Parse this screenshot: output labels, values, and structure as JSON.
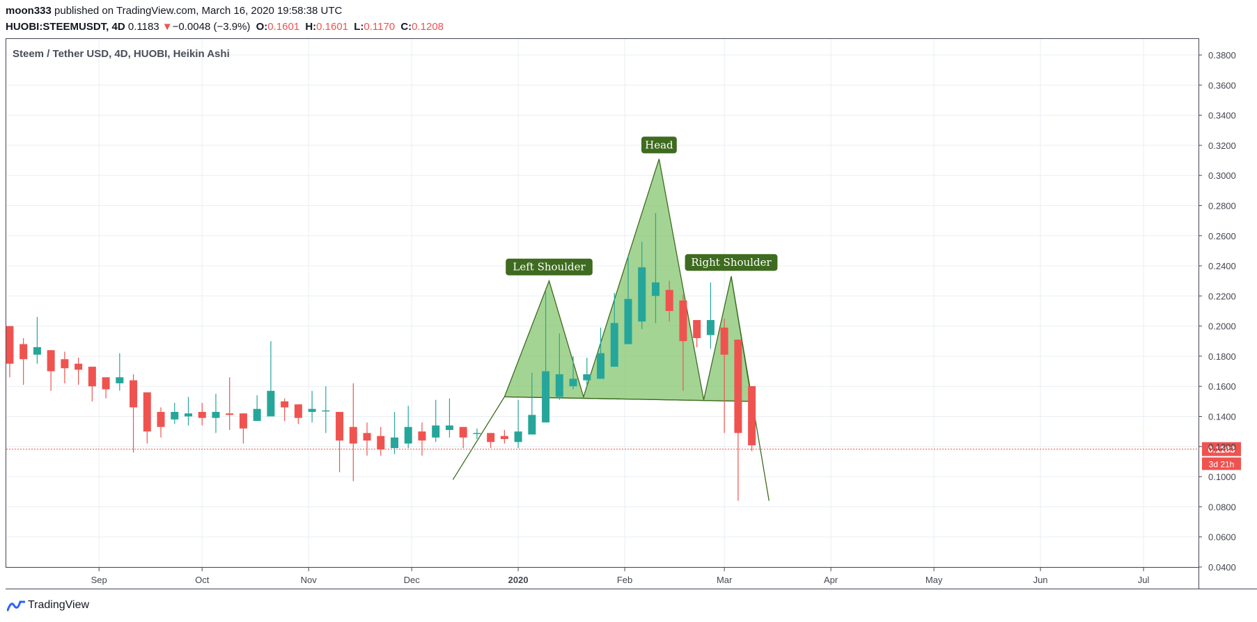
{
  "header": {
    "author": "moon333",
    "published_text": "published on TradingView.com, March 16, 2020 19:58:38 UTC",
    "symbol": "HUOBI:STEEMUSDT, 4D",
    "last_price": "0.1183",
    "change_arrow": "▼",
    "change": "−0.0048 (−3.9%)",
    "o_label": "O:",
    "o_value": "0.1601",
    "h_label": "H:",
    "h_value": "0.1601",
    "l_label": "L:",
    "l_value": "0.1170",
    "c_label": "C:",
    "c_value": "0.1208"
  },
  "footer": {
    "brand": "TradingView"
  },
  "chart_data": {
    "type": "candlestick",
    "title": "Steem / Tether USD, 4D, HUOBI, Heikin Ashi",
    "ylim": [
      0.04,
      0.39
    ],
    "y_ticks": [
      "0.3800",
      "0.3600",
      "0.3400",
      "0.3200",
      "0.3000",
      "0.2800",
      "0.2600",
      "0.2400",
      "0.2200",
      "0.2000",
      "0.1800",
      "0.1600",
      "0.1400",
      "0.1200",
      "0.1000",
      "0.0800",
      "0.0600",
      "0.0400"
    ],
    "x_start": "2019-08-05",
    "x_end": "2020-07-17",
    "x_ticks": [
      {
        "label": "Sep",
        "date": "2019-09-01",
        "bold": false
      },
      {
        "label": "Oct",
        "date": "2019-10-01",
        "bold": false
      },
      {
        "label": "Nov",
        "date": "2019-11-01",
        "bold": false
      },
      {
        "label": "Dec",
        "date": "2019-12-01",
        "bold": false
      },
      {
        "label": "2020",
        "date": "2020-01-01",
        "bold": true
      },
      {
        "label": "Feb",
        "date": "2020-02-01",
        "bold": false
      },
      {
        "label": "Mar",
        "date": "2020-03-01",
        "bold": false
      },
      {
        "label": "Apr",
        "date": "2020-04-01",
        "bold": false
      },
      {
        "label": "May",
        "date": "2020-05-01",
        "bold": false
      },
      {
        "label": "Jun",
        "date": "2020-06-01",
        "bold": false
      },
      {
        "label": "Jul",
        "date": "2020-07-01",
        "bold": false
      }
    ],
    "candles": [
      {
        "d": "2019-08-06",
        "o": 0.2,
        "h": 0.2,
        "l": 0.166,
        "c": 0.175
      },
      {
        "d": "2019-08-10",
        "o": 0.188,
        "h": 0.192,
        "l": 0.161,
        "c": 0.178
      },
      {
        "d": "2019-08-14",
        "o": 0.181,
        "h": 0.206,
        "l": 0.175,
        "c": 0.186
      },
      {
        "d": "2019-08-18",
        "o": 0.184,
        "h": 0.184,
        "l": 0.157,
        "c": 0.17
      },
      {
        "d": "2019-08-22",
        "o": 0.178,
        "h": 0.183,
        "l": 0.162,
        "c": 0.172
      },
      {
        "d": "2019-08-26",
        "o": 0.175,
        "h": 0.179,
        "l": 0.161,
        "c": 0.171
      },
      {
        "d": "2019-08-30",
        "o": 0.173,
        "h": 0.173,
        "l": 0.15,
        "c": 0.16
      },
      {
        "d": "2019-09-03",
        "o": 0.166,
        "h": 0.166,
        "l": 0.152,
        "c": 0.158
      },
      {
        "d": "2019-09-07",
        "o": 0.162,
        "h": 0.182,
        "l": 0.157,
        "c": 0.166
      },
      {
        "d": "2019-09-11",
        "o": 0.164,
        "h": 0.168,
        "l": 0.116,
        "c": 0.146
      },
      {
        "d": "2019-09-15",
        "o": 0.156,
        "h": 0.156,
        "l": 0.122,
        "c": 0.13
      },
      {
        "d": "2019-09-19",
        "o": 0.143,
        "h": 0.146,
        "l": 0.126,
        "c": 0.133
      },
      {
        "d": "2019-09-23",
        "o": 0.138,
        "h": 0.149,
        "l": 0.135,
        "c": 0.143
      },
      {
        "d": "2019-09-27",
        "o": 0.14,
        "h": 0.153,
        "l": 0.134,
        "c": 0.142
      },
      {
        "d": "2019-10-01",
        "o": 0.143,
        "h": 0.149,
        "l": 0.134,
        "c": 0.139
      },
      {
        "d": "2019-10-05",
        "o": 0.139,
        "h": 0.155,
        "l": 0.129,
        "c": 0.143
      },
      {
        "d": "2019-10-09",
        "o": 0.142,
        "h": 0.166,
        "l": 0.131,
        "c": 0.141
      },
      {
        "d": "2019-10-13",
        "o": 0.142,
        "h": 0.142,
        "l": 0.122,
        "c": 0.132
      },
      {
        "d": "2019-10-17",
        "o": 0.137,
        "h": 0.154,
        "l": 0.137,
        "c": 0.145
      },
      {
        "d": "2019-10-21",
        "o": 0.14,
        "h": 0.19,
        "l": 0.14,
        "c": 0.157
      },
      {
        "d": "2019-10-25",
        "o": 0.15,
        "h": 0.152,
        "l": 0.137,
        "c": 0.146
      },
      {
        "d": "2019-10-29",
        "o": 0.148,
        "h": 0.148,
        "l": 0.135,
        "c": 0.139
      },
      {
        "d": "2019-11-02",
        "o": 0.143,
        "h": 0.157,
        "l": 0.136,
        "c": 0.145
      },
      {
        "d": "2019-11-06",
        "o": 0.144,
        "h": 0.16,
        "l": 0.129,
        "c": 0.144
      },
      {
        "d": "2019-11-10",
        "o": 0.143,
        "h": 0.143,
        "l": 0.103,
        "c": 0.124
      },
      {
        "d": "2019-11-14",
        "o": 0.133,
        "h": 0.162,
        "l": 0.097,
        "c": 0.122
      },
      {
        "d": "2019-11-18",
        "o": 0.129,
        "h": 0.136,
        "l": 0.114,
        "c": 0.124
      },
      {
        "d": "2019-11-22",
        "o": 0.127,
        "h": 0.133,
        "l": 0.114,
        "c": 0.118
      },
      {
        "d": "2019-11-26",
        "o": 0.119,
        "h": 0.143,
        "l": 0.115,
        "c": 0.126
      },
      {
        "d": "2019-11-30",
        "o": 0.122,
        "h": 0.147,
        "l": 0.119,
        "c": 0.133
      },
      {
        "d": "2019-12-04",
        "o": 0.13,
        "h": 0.136,
        "l": 0.114,
        "c": 0.124
      },
      {
        "d": "2019-12-08",
        "o": 0.126,
        "h": 0.151,
        "l": 0.123,
        "c": 0.134
      },
      {
        "d": "2019-12-12",
        "o": 0.131,
        "h": 0.152,
        "l": 0.126,
        "c": 0.134
      },
      {
        "d": "2019-12-16",
        "o": 0.133,
        "h": 0.133,
        "l": 0.119,
        "c": 0.126
      },
      {
        "d": "2019-12-20",
        "o": 0.129,
        "h": 0.132,
        "l": 0.125,
        "c": 0.129
      },
      {
        "d": "2019-12-24",
        "o": 0.129,
        "h": 0.129,
        "l": 0.119,
        "c": 0.123
      },
      {
        "d": "2019-12-28",
        "o": 0.127,
        "h": 0.131,
        "l": 0.122,
        "c": 0.125
      },
      {
        "d": "2020-01-01",
        "o": 0.123,
        "h": 0.151,
        "l": 0.119,
        "c": 0.13
      },
      {
        "d": "2020-01-05",
        "o": 0.128,
        "h": 0.169,
        "l": 0.128,
        "c": 0.141
      },
      {
        "d": "2020-01-09",
        "o": 0.136,
        "h": 0.223,
        "l": 0.136,
        "c": 0.17
      },
      {
        "d": "2020-01-13",
        "o": 0.153,
        "h": 0.195,
        "l": 0.151,
        "c": 0.168
      },
      {
        "d": "2020-01-17",
        "o": 0.16,
        "h": 0.18,
        "l": 0.158,
        "c": 0.165
      },
      {
        "d": "2020-01-21",
        "o": 0.164,
        "h": 0.179,
        "l": 0.16,
        "c": 0.168
      },
      {
        "d": "2020-01-25",
        "o": 0.165,
        "h": 0.199,
        "l": 0.165,
        "c": 0.182
      },
      {
        "d": "2020-01-29",
        "o": 0.173,
        "h": 0.222,
        "l": 0.173,
        "c": 0.202
      },
      {
        "d": "2020-02-02",
        "o": 0.188,
        "h": 0.247,
        "l": 0.188,
        "c": 0.218
      },
      {
        "d": "2020-02-06",
        "o": 0.203,
        "h": 0.256,
        "l": 0.198,
        "c": 0.239
      },
      {
        "d": "2020-02-10",
        "o": 0.22,
        "h": 0.275,
        "l": 0.202,
        "c": 0.229
      },
      {
        "d": "2020-02-14",
        "o": 0.224,
        "h": 0.23,
        "l": 0.203,
        "c": 0.21
      },
      {
        "d": "2020-02-18",
        "o": 0.217,
        "h": 0.221,
        "l": 0.157,
        "c": 0.19
      },
      {
        "d": "2020-02-22",
        "o": 0.204,
        "h": 0.204,
        "l": 0.186,
        "c": 0.192
      },
      {
        "d": "2020-02-26",
        "o": 0.194,
        "h": 0.229,
        "l": 0.185,
        "c": 0.204
      },
      {
        "d": "2020-03-01",
        "o": 0.199,
        "h": 0.205,
        "l": 0.129,
        "c": 0.181
      },
      {
        "d": "2020-03-05",
        "o": 0.191,
        "h": 0.191,
        "l": 0.084,
        "c": 0.129
      },
      {
        "d": "2020-03-09",
        "o": 0.1601,
        "h": 0.1601,
        "l": 0.117,
        "c": 0.1208
      }
    ],
    "last_price": {
      "value": 0.1183,
      "label": "0.1183",
      "countdown": "3d 21h"
    },
    "pattern": {
      "fill_color": "#80c46a",
      "line_color": "#3e6b1f",
      "labels": [
        {
          "text": "Left Shoulder",
          "date": "2020-01-10",
          "price": 0.23
        },
        {
          "text": "Head",
          "date": "2020-02-11",
          "price": 0.311
        },
        {
          "text": "Right Shoulder",
          "date": "2020-03-03",
          "price": 0.233
        }
      ],
      "points": [
        {
          "date": "2019-12-28",
          "price": 0.153
        },
        {
          "date": "2020-01-10",
          "price": 0.23
        },
        {
          "date": "2020-01-20",
          "price": 0.153
        },
        {
          "date": "2020-02-11",
          "price": 0.311
        },
        {
          "date": "2020-02-24",
          "price": 0.151
        },
        {
          "date": "2020-03-03",
          "price": 0.233
        },
        {
          "date": "2020-03-09",
          "price": 0.15
        }
      ],
      "trend_line_left": [
        {
          "date": "2019-12-13",
          "price": 0.098
        },
        {
          "date": "2019-12-28",
          "price": 0.153
        }
      ],
      "trend_line_right": [
        {
          "date": "2020-03-03",
          "price": 0.233
        },
        {
          "date": "2020-03-14",
          "price": 0.084
        }
      ],
      "neckline": [
        {
          "date": "2019-12-28",
          "price": 0.153
        },
        {
          "date": "2020-03-09",
          "price": 0.15
        }
      ]
    },
    "colors": {
      "up": "#26a69a",
      "down": "#ef5350",
      "grid": "#e9eff3",
      "axis": "#787b86",
      "last_line": "#ef5350"
    }
  }
}
